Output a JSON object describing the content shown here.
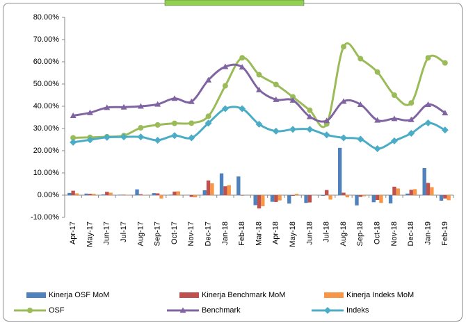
{
  "chart_data": {
    "type": "combo",
    "categories": [
      "Apr-17",
      "May-17",
      "Jun-17",
      "Jul-17",
      "Aug-17",
      "Sep-17",
      "Oct-17",
      "Nov-17",
      "Dec-17",
      "Jan-18",
      "Feb-18",
      "Mar-18",
      "Apr-18",
      "May-18",
      "Jun-18",
      "Jul-18",
      "Aug-18",
      "Sep-18",
      "Oct-18",
      "Nov-18",
      "Dec-18",
      "Jan-19",
      "Feb-19"
    ],
    "ylim": [
      -10,
      80
    ],
    "yticks": [
      {
        "value": -10,
        "label": "-10.00%"
      },
      {
        "value": 0,
        "label": "0.00%"
      },
      {
        "value": 10,
        "label": "10.00%"
      },
      {
        "value": 20,
        "label": "20.00%"
      },
      {
        "value": 30,
        "label": "30.00%"
      },
      {
        "value": 40,
        "label": "40.00%"
      },
      {
        "value": 50,
        "label": "50.00%"
      },
      {
        "value": 60,
        "label": "60.00%"
      },
      {
        "value": 70,
        "label": "70.00%"
      },
      {
        "value": 80,
        "label": "80.00%"
      }
    ],
    "grid": false,
    "legend": "bottom",
    "series": [
      {
        "name": "Kinerja OSF MoM",
        "type": "bar",
        "color": "#4f81bd",
        "values": [
          1.0,
          0.7,
          0.3,
          0.2,
          2.6,
          0.9,
          0.2,
          0.1,
          2.2,
          9.8,
          8.4,
          -4.5,
          -3.0,
          -3.8,
          -3.5,
          -0.3,
          21.3,
          -4.6,
          -3.2,
          -3.7,
          0.7,
          12.2,
          -2.5
        ]
      },
      {
        "name": "Kinerja Benchmark MoM",
        "type": "bar",
        "color": "#c0504d",
        "values": [
          2.0,
          0.6,
          1.5,
          0.2,
          0.4,
          0.8,
          1.6,
          -0.8,
          6.6,
          4.0,
          -0.2,
          -6.0,
          -3.1,
          -0.3,
          -3.3,
          2.3,
          1.1,
          -0.8,
          -2.2,
          3.8,
          2.4,
          5.5,
          -1.5
        ]
      },
      {
        "name": "Kinerja Indeks MoM",
        "type": "bar",
        "color": "#f79646",
        "values": [
          0.8,
          0.6,
          1.1,
          0.2,
          0.1,
          -1.5,
          1.7,
          -1.0,
          5.3,
          4.5,
          0.0,
          -5.0,
          -2.4,
          0.6,
          -0.1,
          -2.0,
          -1.0,
          -0.5,
          -3.5,
          3.0,
          2.7,
          3.6,
          -2.3
        ]
      },
      {
        "name": "OSF",
        "type": "line",
        "marker": "circle",
        "color": "#9bbb59",
        "values": [
          25.8,
          26.0,
          26.3,
          26.8,
          30.3,
          31.6,
          32.3,
          32.4,
          35.5,
          49.2,
          61.8,
          54.2,
          49.8,
          44.2,
          38.2,
          32.0,
          66.8,
          61.4,
          55.4,
          45.0,
          41.5,
          61.8,
          59.5
        ]
      },
      {
        "name": "Benchmark",
        "type": "line",
        "marker": "triangle",
        "color": "#8064a2",
        "values": [
          35.8,
          37.1,
          39.4,
          39.6,
          40.0,
          40.9,
          43.5,
          42.1,
          51.8,
          57.8,
          57.6,
          47.4,
          43.0,
          42.7,
          35.3,
          33.5,
          42.2,
          40.8,
          33.7,
          34.4,
          34.0,
          40.8,
          37.0
        ]
      },
      {
        "name": "Indeks",
        "type": "line",
        "marker": "diamond",
        "color": "#4bacc6",
        "values": [
          23.8,
          24.9,
          26.0,
          26.2,
          26.2,
          24.7,
          26.8,
          25.8,
          32.4,
          38.9,
          38.9,
          31.9,
          28.8,
          29.6,
          29.6,
          27.1,
          25.8,
          25.2,
          20.9,
          24.4,
          27.8,
          32.5,
          29.3
        ]
      }
    ]
  }
}
